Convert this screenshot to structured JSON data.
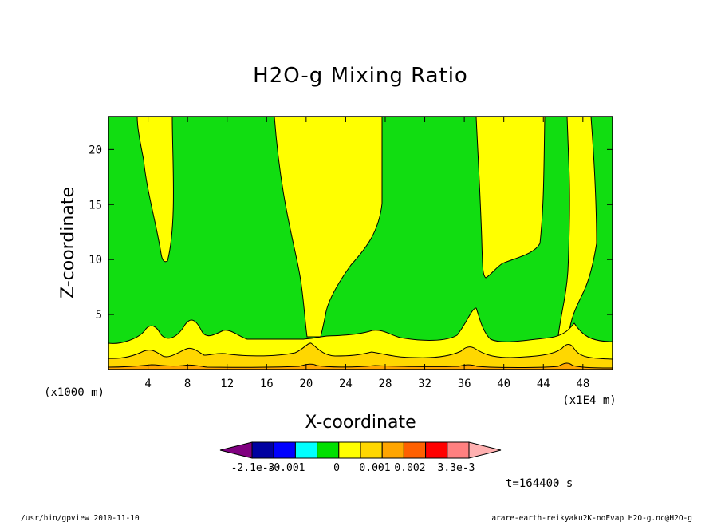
{
  "chart_data": {
    "type": "heatmap",
    "title": "H2O-g Mixing Ratio",
    "xlabel": "X-coordinate",
    "ylabel": "Z-coordinate",
    "x_unit": "(x1E4 m)",
    "y_unit": "(x1000 m)",
    "xlim": [
      0,
      51
    ],
    "ylim": [
      0,
      23
    ],
    "x_ticks": [
      "4",
      "8",
      "12",
      "16",
      "20",
      "24",
      "28",
      "32",
      "36",
      "40",
      "44",
      "48"
    ],
    "y_ticks": [
      "5",
      "10",
      "15",
      "20"
    ],
    "colorbar": {
      "colors": [
        "#800080",
        "#0000a0",
        "#0000ff",
        "#00ffff",
        "#00e000",
        "#ffff00",
        "#ffd700",
        "#ffa500",
        "#ff6000",
        "#ff0000",
        "#ff8080",
        "#ffb0b0"
      ],
      "labels": [
        "-2.1e-3",
        "-0.001",
        "0",
        "0.001",
        "0.002",
        "3.3e-3"
      ]
    },
    "time_label": "t=164400 s",
    "footer_left": "/usr/bin/gpview   2010-11-10",
    "footer_right": "arare-earth-reikyaku2K-noEvap_H2O-g.nc@H2O-g",
    "fill_colors": {
      "green": "#11dd11",
      "yellow": "#ffff00",
      "gold": "#ffd700",
      "orange": "#ffa500"
    }
  }
}
